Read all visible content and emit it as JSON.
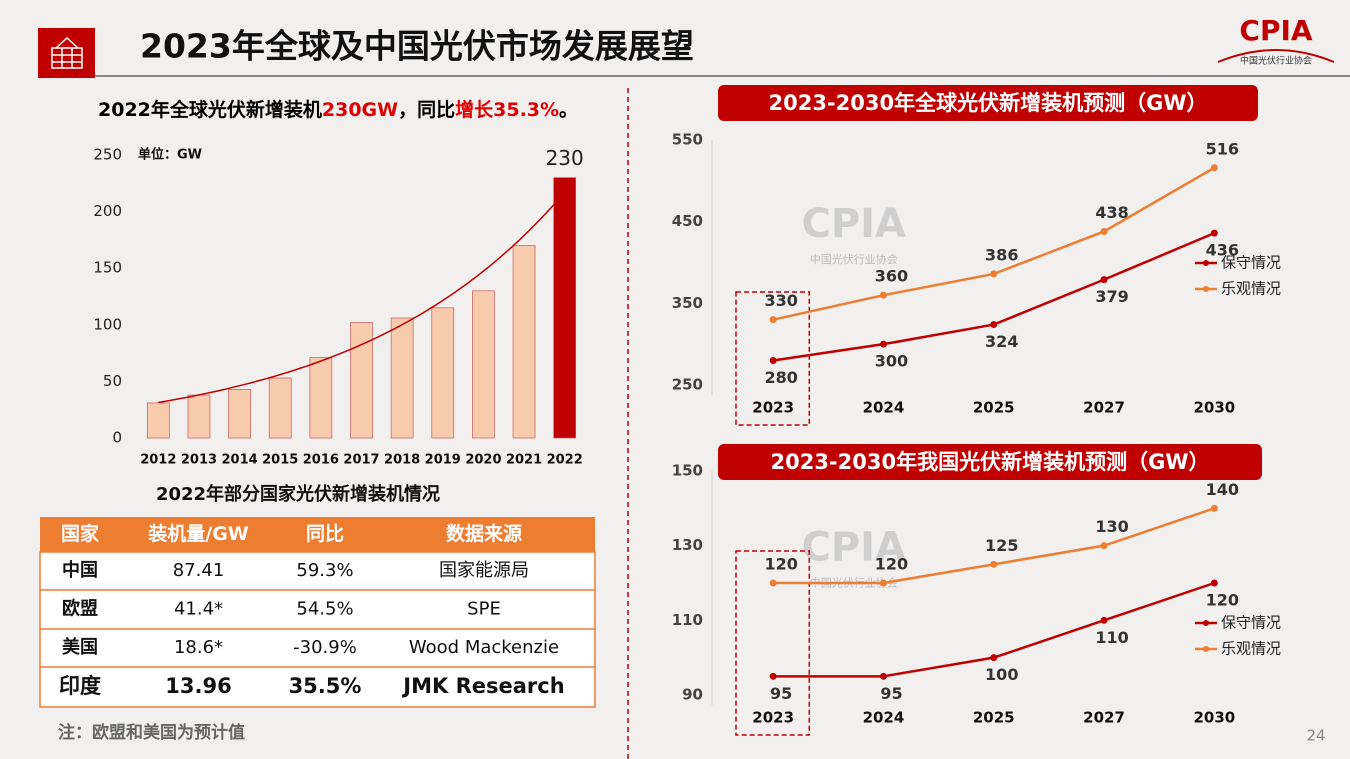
{
  "header": {
    "title": "2023年全球及中国光伏市场发展展望",
    "logo": "CPIA",
    "logo_subtitle": "中国光伏行业协会"
  },
  "headline": [
    {
      "text": "2022年全球光伏新增装机",
      "color": "#000000"
    },
    {
      "text": "230GW",
      "color": "#e00000"
    },
    {
      "text": "，同比",
      "color": "#000000"
    },
    {
      "text": "增长35.3%",
      "color": "#e00000"
    },
    {
      "text": "。",
      "color": "#000000"
    }
  ],
  "watermark": {
    "text": "CPIA",
    "subtext": "中国光伏行业协会"
  },
  "chart_data": [
    {
      "type": "bar",
      "unit_label": "单位：GW",
      "categories": [
        "2012",
        "2013",
        "2014",
        "2015",
        "2016",
        "2017",
        "2018",
        "2019",
        "2020",
        "2021",
        "2022"
      ],
      "values": [
        31,
        38,
        43,
        53,
        71,
        102,
        106,
        115,
        130,
        170,
        230
      ],
      "colors": [
        "#f8cbad",
        "#f8cbad",
        "#f8cbad",
        "#f8cbad",
        "#f8cbad",
        "#f8cbad",
        "#f8cbad",
        "#f8cbad",
        "#f8cbad",
        "#f8cbad",
        "#c00000"
      ],
      "edge_color": "#c55a5a",
      "show_value_labels": "last",
      "trendline": "exponential",
      "trendline_color": "#c00000",
      "ylim": [
        0,
        250
      ],
      "yticks": [
        0,
        50,
        100,
        150,
        200,
        250
      ]
    },
    {
      "type": "line",
      "title": "2023-2030年全球光伏新增装机预测（GW）",
      "categories": [
        "2023",
        "2024",
        "2025",
        "2027",
        "2030"
      ],
      "series": [
        {
          "name": "保守情况",
          "color": "#c00000",
          "values": [
            280,
            300,
            324,
            379,
            436
          ],
          "label_position": "below"
        },
        {
          "name": "乐观情况",
          "color": "#ed7d31",
          "values": [
            330,
            360,
            386,
            438,
            516
          ],
          "label_position": "above"
        }
      ],
      "ylim": [
        250,
        550
      ],
      "yticks": [
        250,
        350,
        450,
        550
      ],
      "legend": "right"
    },
    {
      "type": "line",
      "title": "2023-2030年我国光伏新增装机预测（GW）",
      "categories": [
        "2023",
        "2024",
        "2025",
        "2027",
        "2030"
      ],
      "series": [
        {
          "name": "保守情况",
          "color": "#c00000",
          "values": [
            95,
            95,
            100,
            110,
            120
          ],
          "label_position": "below"
        },
        {
          "name": "乐观情况",
          "color": "#ed7d31",
          "values": [
            120,
            120,
            125,
            130,
            140
          ],
          "label_position": "above"
        }
      ],
      "ylim": [
        90,
        150
      ],
      "yticks": [
        90,
        110,
        130,
        150
      ],
      "legend": "right"
    }
  ],
  "table": {
    "title": "2022年部分国家光伏新增装机情况",
    "header": [
      "国家",
      "装机量/GW",
      "同比",
      "数据来源"
    ],
    "rows": [
      [
        "中国",
        "87.41",
        "59.3%",
        "国家能源局"
      ],
      [
        "欧盟",
        "41.4*",
        "54.5%",
        "SPE"
      ],
      [
        "美国",
        "18.6*",
        "-30.9%",
        "Wood Mackenzie"
      ],
      [
        "印度",
        "13.96",
        "35.5%",
        "JMK Research"
      ]
    ]
  },
  "note": "注：欧盟和美国为预计值",
  "page_number": "24"
}
